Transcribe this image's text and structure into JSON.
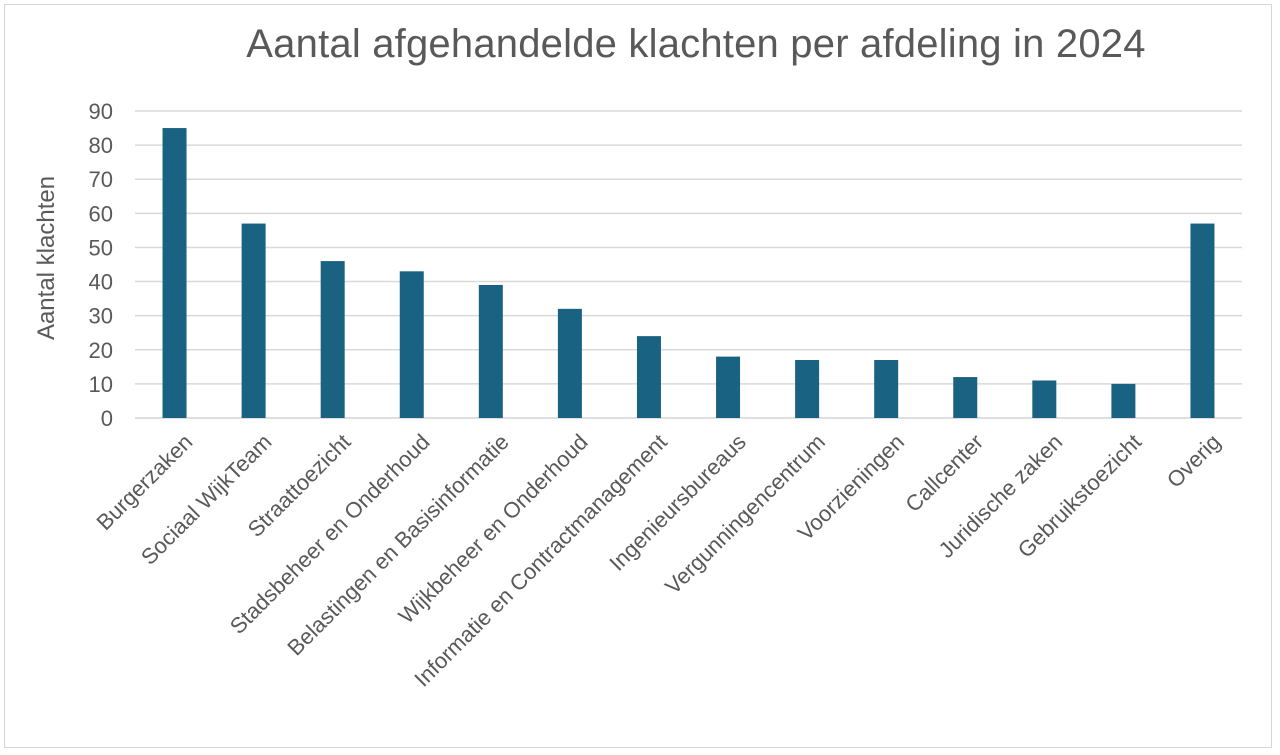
{
  "chart_data": {
    "type": "bar",
    "title": "Aantal afgehandelde klachten per afdeling in 2024",
    "xlabel": "",
    "ylabel": "Aantal klachten",
    "categories": [
      "Burgerzaken",
      "Sociaal WijkTeam",
      "Straattoezicht",
      "Stadsbeheer en Onderhoud",
      "Belastingen en Basisinformatie",
      "Wijkbeheer en Onderhoud",
      "Informatie en Contractmanagement",
      "Ingenieursbureaus",
      "Vergunningencentrum",
      "Voorzieningen",
      "Callcenter",
      "Juridische zaken",
      "Gebruikstoezicht",
      "Overig"
    ],
    "values": [
      85,
      57,
      46,
      43,
      39,
      32,
      24,
      18,
      17,
      17,
      12,
      11,
      10,
      57
    ],
    "ylim": [
      0,
      90
    ],
    "yticks": [
      0,
      10,
      20,
      30,
      40,
      50,
      60,
      70,
      80,
      90
    ],
    "grid": true,
    "bar_color": "#1a6282",
    "grid_color": "#d9d9d9"
  }
}
